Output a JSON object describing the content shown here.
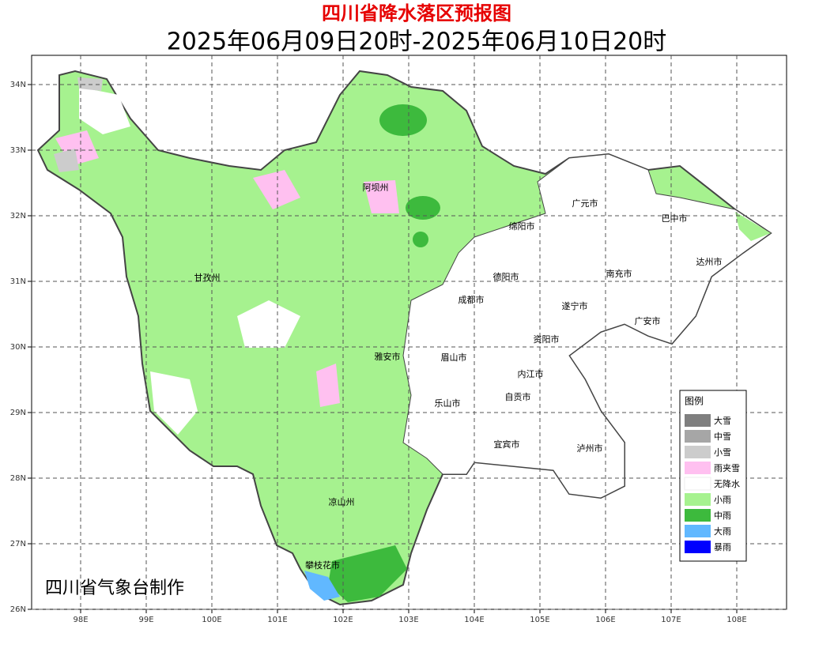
{
  "header": {
    "title": "四川省降水落区预报图",
    "subtitle": "2025年06月09日20时-2025年06月10日20时"
  },
  "lon_ticks": [
    {
      "value": 98,
      "label": "98E"
    },
    {
      "value": 99,
      "label": "99E"
    },
    {
      "value": 100,
      "label": "100E"
    },
    {
      "value": 101,
      "label": "101E"
    },
    {
      "value": 102,
      "label": "102E"
    },
    {
      "value": 103,
      "label": "103E"
    },
    {
      "value": 104,
      "label": "104E"
    },
    {
      "value": 105,
      "label": "105E"
    },
    {
      "value": 106,
      "label": "106E"
    },
    {
      "value": 107,
      "label": "107E"
    },
    {
      "value": 108,
      "label": "108E"
    }
  ],
  "lat_ticks": [
    {
      "value": 26,
      "label": "26N"
    },
    {
      "value": 27,
      "label": "27N"
    },
    {
      "value": 28,
      "label": "28N"
    },
    {
      "value": 29,
      "label": "29N"
    },
    {
      "value": 30,
      "label": "30N"
    },
    {
      "value": 31,
      "label": "31N"
    },
    {
      "value": 32,
      "label": "32N"
    },
    {
      "value": 33,
      "label": "33N"
    },
    {
      "value": 34,
      "label": "34N"
    }
  ],
  "cities": [
    "阿坝州",
    "甘孜州",
    "广元市",
    "巴中市",
    "绵阳市",
    "达州市",
    "南充市",
    "德阳市",
    "成都市",
    "遂宁市",
    "广安市",
    "资阳市",
    "雅安市",
    "眉山市",
    "内江市",
    "自贡市",
    "乐山市",
    "宜宾市",
    "泸州市",
    "凉山州",
    "攀枝花市"
  ],
  "legend": {
    "title": "图例",
    "items": [
      {
        "name": "大雪",
        "color": "#7f7f7f"
      },
      {
        "name": "中雪",
        "color": "#a6a6a6"
      },
      {
        "name": "小雪",
        "color": "#cccccc"
      },
      {
        "name": "雨夹雪",
        "color": "#ffc0f0"
      },
      {
        "name": "无降水",
        "color": "#ffffff"
      },
      {
        "name": "小雨",
        "color": "#a6f28f"
      },
      {
        "name": "中雨",
        "color": "#3dba3d"
      },
      {
        "name": "大雨",
        "color": "#61b8ff"
      },
      {
        "name": "暴雨",
        "color": "#0000fe"
      }
    ]
  },
  "credit": "四川省气象台制作"
}
